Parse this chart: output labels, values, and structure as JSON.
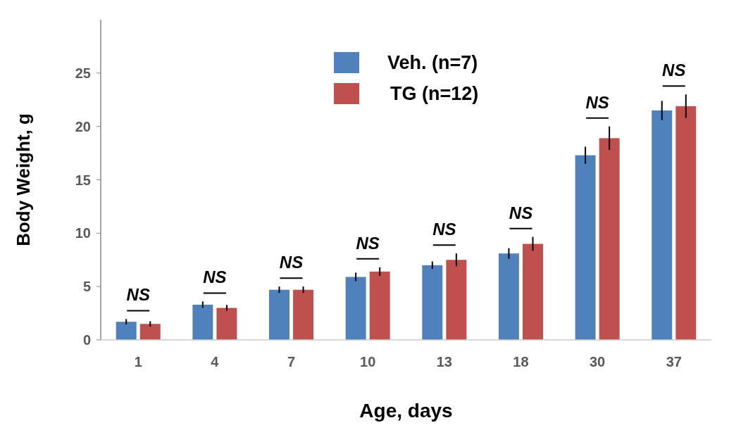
{
  "chart_data": {
    "type": "bar",
    "xlabel": "Age, days",
    "ylabel": "Body Weight, g",
    "categories": [
      "1",
      "4",
      "7",
      "10",
      "13",
      "18",
      "30",
      "37"
    ],
    "series": [
      {
        "name": "Veh. (n=7)",
        "color": "#4f81bd",
        "values": [
          1.7,
          3.3,
          4.7,
          5.9,
          7.0,
          8.1,
          17.3,
          21.5
        ],
        "errors": [
          0.25,
          0.3,
          0.3,
          0.4,
          0.35,
          0.5,
          0.8,
          0.9
        ]
      },
      {
        "name": "TG (n=12)",
        "color": "#c0504d",
        "values": [
          1.5,
          3.0,
          4.7,
          6.4,
          7.5,
          9.0,
          18.9,
          21.9
        ],
        "errors": [
          0.25,
          0.28,
          0.3,
          0.4,
          0.6,
          0.65,
          1.1,
          1.1
        ]
      }
    ],
    "annotations": [
      "NS",
      "NS",
      "NS",
      "NS",
      "NS",
      "NS",
      "NS",
      "NS"
    ],
    "ylim": [
      0,
      30
    ],
    "yticks": [
      0,
      5,
      10,
      15,
      20,
      25
    ],
    "grid": false,
    "legend": "top"
  }
}
